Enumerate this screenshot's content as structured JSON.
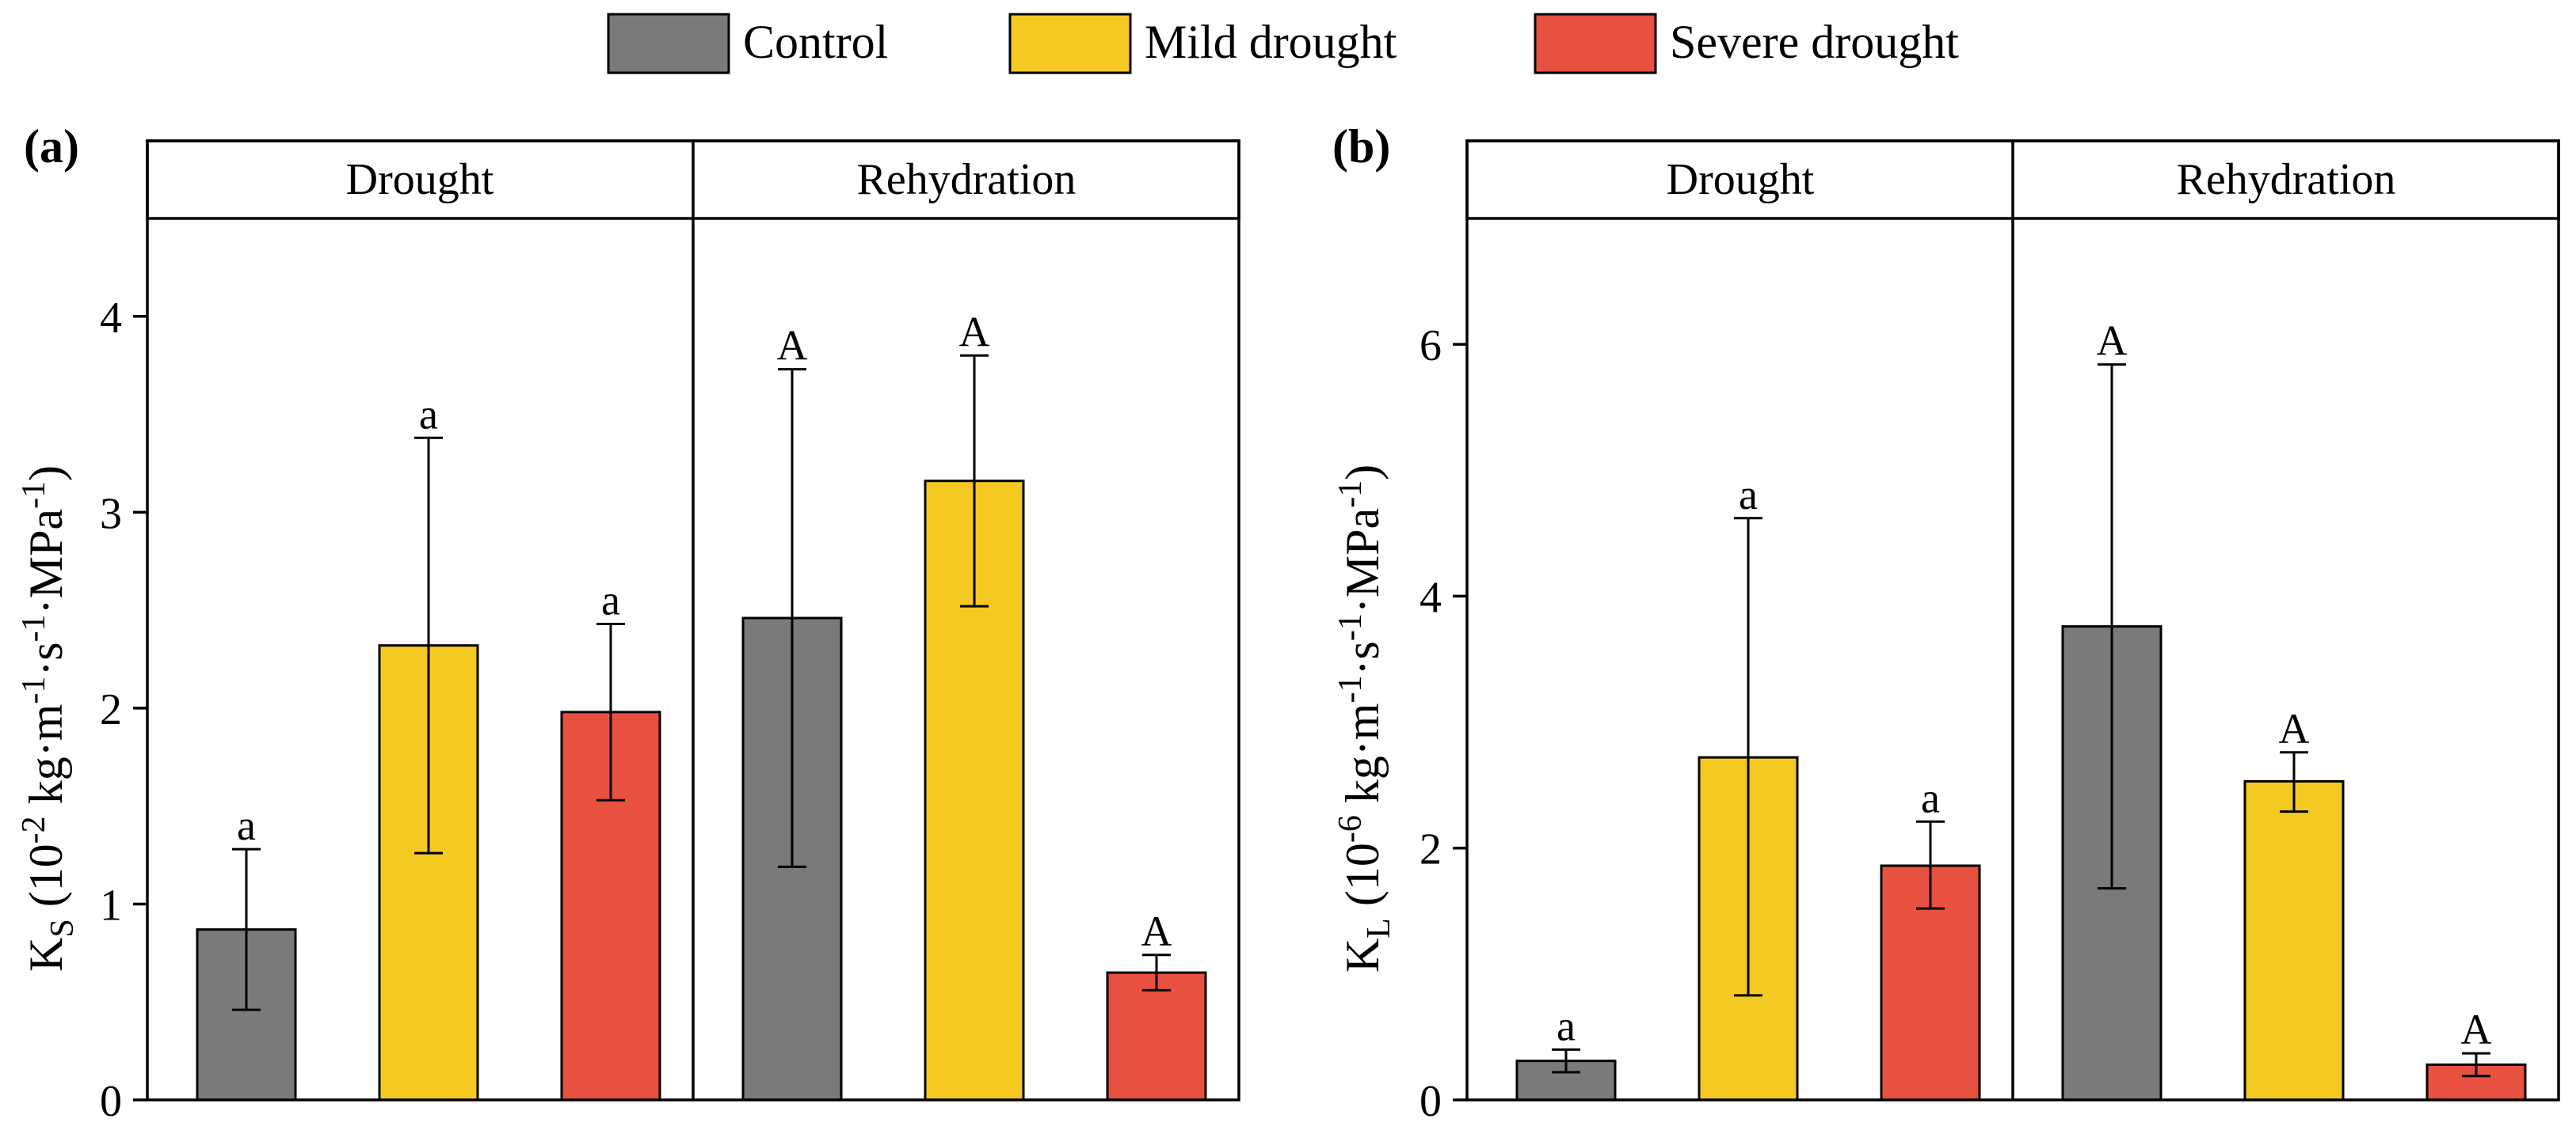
{
  "colors": {
    "control": "#7a7a7a",
    "mild": "#f4c922",
    "severe": "#e8503f",
    "stroke": "#000000"
  },
  "legend": {
    "items": [
      {
        "key": "control",
        "label": "Control"
      },
      {
        "key": "mild",
        "label": "Mild drought"
      },
      {
        "key": "severe",
        "label": "Severe drought"
      }
    ]
  },
  "chart_data": [
    {
      "type": "bar",
      "panel_label": "(a)",
      "ylabel": {
        "main": "K",
        "sub": "S",
        "unit_open": " (10",
        "exp": "-2",
        "unit_rest": " kg·m",
        "u1": "-1",
        "s": "·s",
        "u2": "-1",
        "mpa": "·MPa",
        "u3": "-1",
        "close": ")"
      },
      "ylim": [
        0,
        4.5
      ],
      "yticks": [
        0,
        1,
        2,
        3,
        4
      ],
      "ytick_labels": [
        "0",
        "1",
        "2",
        "3",
        "4"
      ],
      "facets": [
        {
          "name": "Drought",
          "bars": [
            {
              "series": "Control",
              "key": "control",
              "value": 0.87,
              "err_low": 0.46,
              "err_high": 1.28,
              "letter": "a"
            },
            {
              "series": "Mild drought",
              "key": "mild",
              "value": 2.32,
              "err_low": 1.26,
              "err_high": 3.38,
              "letter": "a"
            },
            {
              "series": "Severe drought",
              "key": "severe",
              "value": 1.98,
              "err_low": 1.53,
              "err_high": 2.43,
              "letter": "a"
            }
          ]
        },
        {
          "name": "Rehydration",
          "bars": [
            {
              "series": "Control",
              "key": "control",
              "value": 2.46,
              "err_low": 1.19,
              "err_high": 3.73,
              "letter": "A"
            },
            {
              "series": "Mild drought",
              "key": "mild",
              "value": 3.16,
              "err_low": 2.52,
              "err_high": 3.8,
              "letter": "A"
            },
            {
              "series": "Severe drought",
              "key": "severe",
              "value": 0.65,
              "err_low": 0.56,
              "err_high": 0.74,
              "letter": "A"
            }
          ]
        }
      ]
    },
    {
      "type": "bar",
      "panel_label": "(b)",
      "ylabel": {
        "main": "K",
        "sub": "L",
        "unit_open": " (10",
        "exp": "-6",
        "unit_rest": " kg·m",
        "u1": "-1",
        "s": "·s",
        "u2": "-1",
        "mpa": "·MPa",
        "u3": "-1",
        "close": ")"
      },
      "ylim": [
        0,
        7.0
      ],
      "yticks": [
        0,
        2,
        4,
        6
      ],
      "ytick_labels": [
        "0",
        "2",
        "4",
        "6"
      ],
      "facets": [
        {
          "name": "Drought",
          "bars": [
            {
              "series": "Control",
              "key": "control",
              "value": 0.31,
              "err_low": 0.22,
              "err_high": 0.4,
              "letter": "a"
            },
            {
              "series": "Mild drought",
              "key": "mild",
              "value": 2.72,
              "err_low": 0.83,
              "err_high": 4.62,
              "letter": "a"
            },
            {
              "series": "Severe drought",
              "key": "severe",
              "value": 1.86,
              "err_low": 1.52,
              "err_high": 2.21,
              "letter": "a"
            }
          ]
        },
        {
          "name": "Rehydration",
          "bars": [
            {
              "series": "Control",
              "key": "control",
              "value": 3.76,
              "err_low": 1.68,
              "err_high": 5.84,
              "letter": "A"
            },
            {
              "series": "Mild drought",
              "key": "mild",
              "value": 2.53,
              "err_low": 2.29,
              "err_high": 2.76,
              "letter": "A"
            },
            {
              "series": "Severe drought",
              "key": "severe",
              "value": 0.28,
              "err_low": 0.19,
              "err_high": 0.37,
              "letter": "A"
            }
          ]
        }
      ]
    }
  ]
}
